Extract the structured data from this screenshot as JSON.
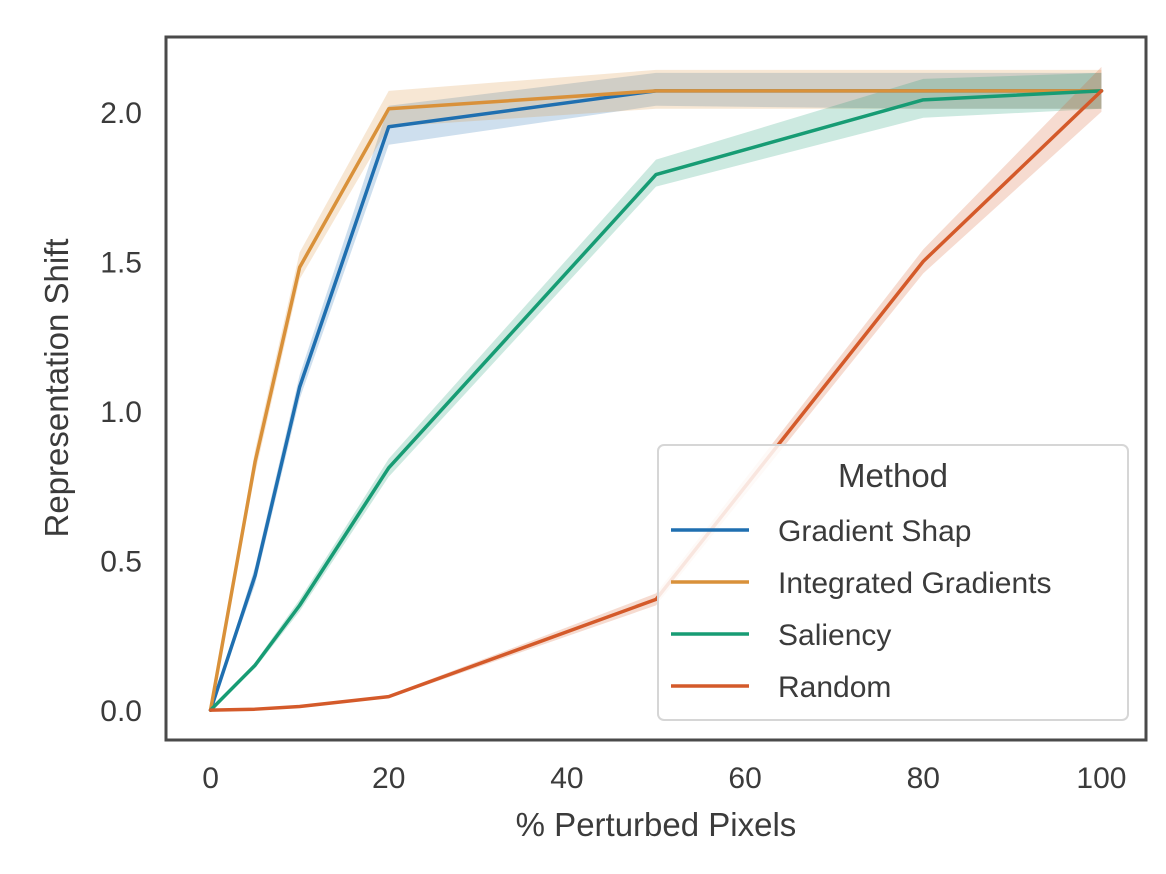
{
  "chart_data": {
    "type": "line",
    "title": "",
    "xlabel": "% Perturbed Pixels",
    "ylabel": "Representation Shift",
    "xlim": [
      -5,
      105
    ],
    "ylim": [
      -0.1,
      2.25
    ],
    "xticks": [
      0,
      20,
      40,
      60,
      80,
      100
    ],
    "xtick_labels": [
      "0",
      "20",
      "40",
      "60",
      "80",
      "100"
    ],
    "yticks": [
      0.0,
      0.5,
      1.0,
      1.5,
      2.0
    ],
    "ytick_labels": [
      "0.0",
      "0.5",
      "1.0",
      "1.5",
      "2.0"
    ],
    "grid": false,
    "legend": {
      "title": "Method",
      "position": "lower-right"
    },
    "x": [
      0,
      5,
      10,
      20,
      50,
      80,
      100
    ],
    "series": [
      {
        "name": "Gradient Shap",
        "color": "#1f6fb0",
        "values": [
          0.0,
          0.45,
          1.08,
          1.95,
          2.07,
          2.07,
          2.07
        ],
        "lower": [
          0.0,
          0.42,
          1.04,
          1.89,
          2.02,
          2.01,
          2.01
        ],
        "upper": [
          0.0,
          0.48,
          1.12,
          2.02,
          2.13,
          2.13,
          2.13
        ]
      },
      {
        "name": "Integrated Gradients",
        "color": "#d9913a",
        "values": [
          0.0,
          0.83,
          1.48,
          2.01,
          2.07,
          2.07,
          2.07
        ],
        "lower": [
          0.0,
          0.79,
          1.44,
          1.95,
          2.01,
          2.01,
          2.01
        ],
        "upper": [
          0.0,
          0.87,
          1.53,
          2.07,
          2.14,
          2.14,
          2.14
        ]
      },
      {
        "name": "Saliency",
        "color": "#179c74",
        "values": [
          0.0,
          0.15,
          0.35,
          0.81,
          1.79,
          2.04,
          2.07
        ],
        "lower": [
          0.0,
          0.14,
          0.33,
          0.78,
          1.75,
          1.98,
          2.01
        ],
        "upper": [
          0.0,
          0.16,
          0.37,
          0.84,
          1.84,
          2.11,
          2.13
        ]
      },
      {
        "name": "Random",
        "color": "#d45a2a",
        "values": [
          0.0,
          0.003,
          0.012,
          0.045,
          0.37,
          1.5,
          2.07
        ],
        "lower": [
          0.0,
          0.002,
          0.01,
          0.04,
          0.35,
          1.46,
          2.0
        ],
        "upper": [
          0.0,
          0.004,
          0.014,
          0.05,
          0.39,
          1.54,
          2.15
        ]
      }
    ]
  }
}
